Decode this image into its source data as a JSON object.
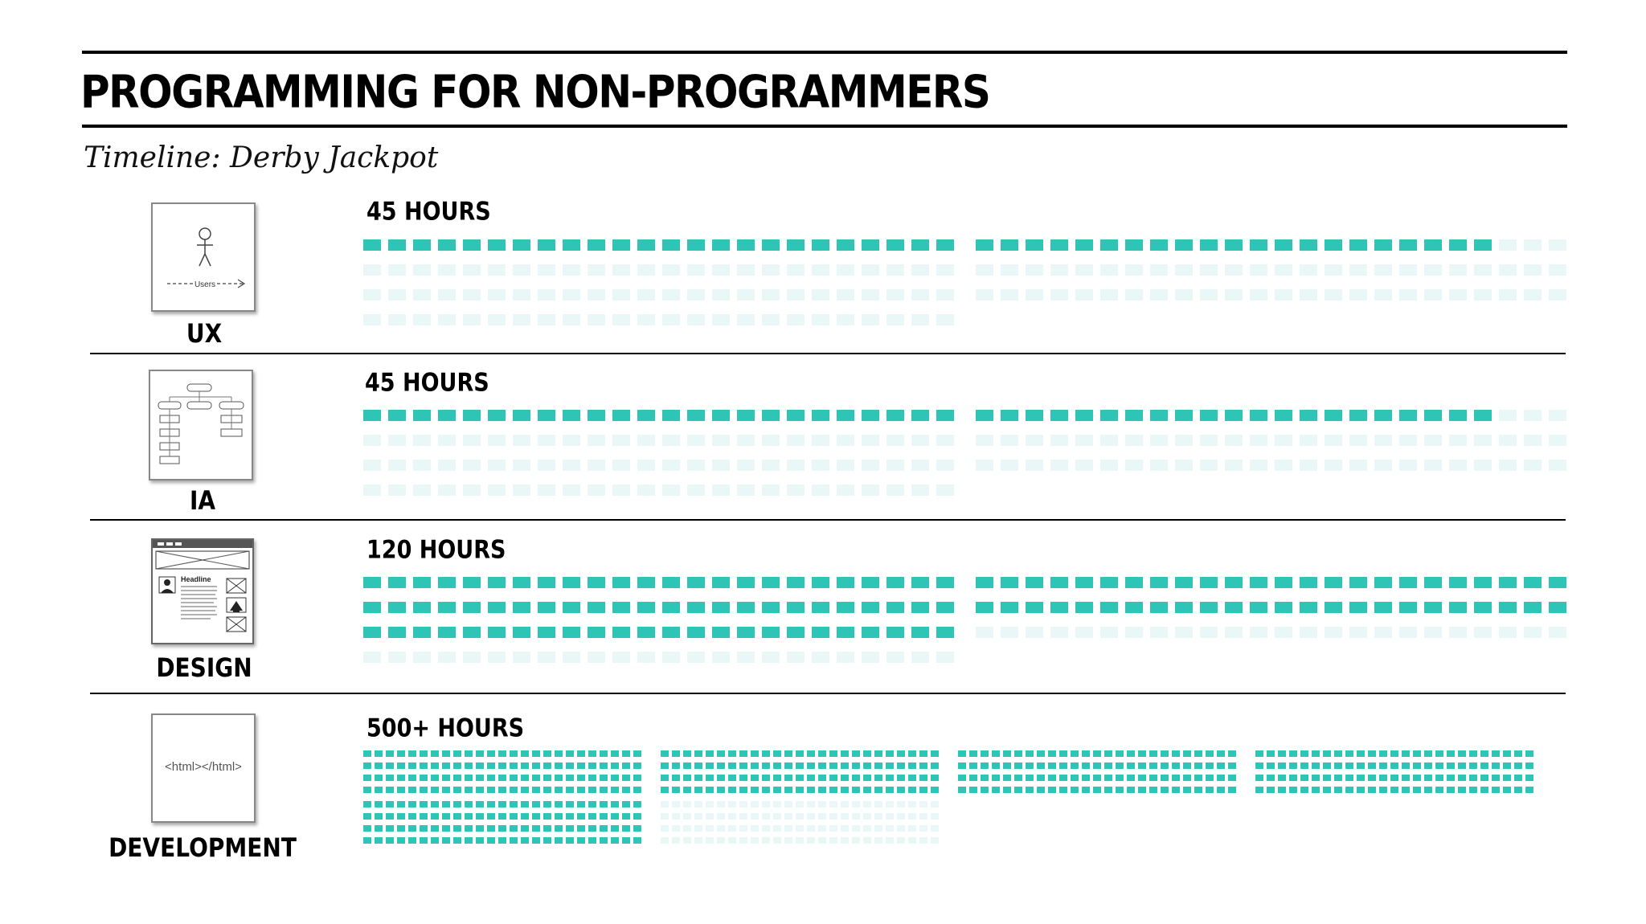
{
  "title": "PROGRAMMING FOR NON-PROGRAMMERS",
  "subtitle": "Timeline: Derby Jackpot",
  "colors": {
    "filled": "#2ec4b6",
    "empty": "#e9f8f6",
    "rule": "#000000"
  },
  "phases": [
    {
      "name": "UX",
      "hours_label": "45 HOURS",
      "hours": 45,
      "icon": "use-case-diagram-icon",
      "icon_text": "Users"
    },
    {
      "name": "IA",
      "hours_label": "45 HOURS",
      "hours": 45,
      "icon": "flowchart-icon"
    },
    {
      "name": "DESIGN",
      "hours_label": "120 HOURS",
      "hours": 120,
      "icon": "wireframe-icon",
      "icon_text": "Headline"
    },
    {
      "name": "DEVELOPMENT",
      "hours_label": "500+ HOURS",
      "hours": 500,
      "icon": "html-code-icon",
      "icon_text": "<html></html>"
    }
  ]
}
